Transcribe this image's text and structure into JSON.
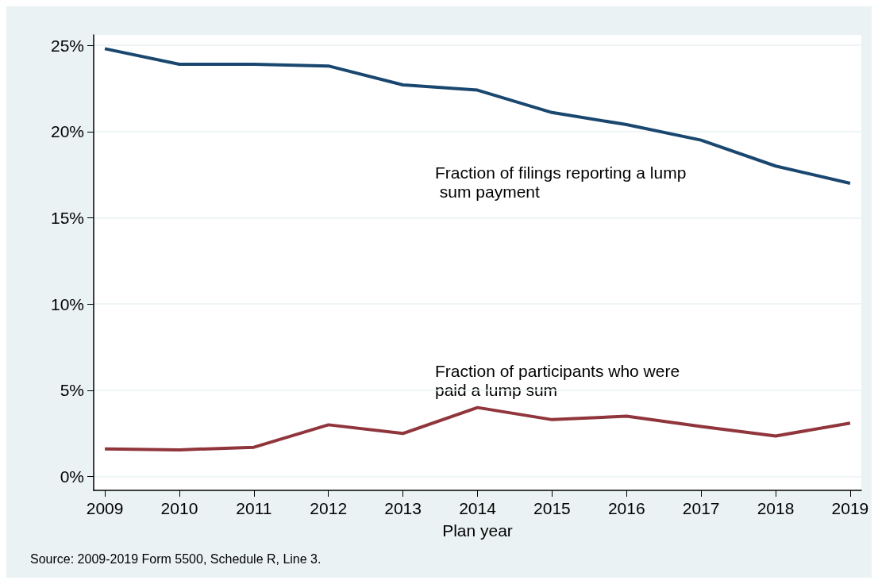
{
  "chart_data": {
    "type": "line",
    "xlabel": "Plan year",
    "x": [
      2009,
      2010,
      2011,
      2012,
      2013,
      2014,
      2015,
      2016,
      2017,
      2018,
      2019
    ],
    "series": [
      {
        "name": "Fraction of filings reporting a lump sum payment",
        "color": "#1a476f",
        "values": [
          24.8,
          23.9,
          23.9,
          23.8,
          22.7,
          22.4,
          21.1,
          20.4,
          19.5,
          18.0,
          17.0
        ]
      },
      {
        "name": "Fraction of participants who were paid a lump sum",
        "color": "#90353b",
        "values": [
          1.6,
          1.55,
          1.7,
          3.0,
          2.5,
          4.0,
          3.3,
          3.5,
          2.9,
          2.35,
          3.1
        ]
      }
    ],
    "xlim": [
      2008.85,
      2019.15
    ],
    "xticks": [
      2009,
      2010,
      2011,
      2012,
      2013,
      2014,
      2015,
      2016,
      2017,
      2018,
      2019
    ],
    "ylim": [
      -0.8,
      25.6
    ],
    "yticks": [
      {
        "value": 0,
        "label": "0%"
      },
      {
        "value": 5,
        "label": "5%"
      },
      {
        "value": 10,
        "label": "10%"
      },
      {
        "value": 15,
        "label": "15%"
      },
      {
        "value": 20,
        "label": "20%"
      },
      {
        "value": 25,
        "label": "25%"
      }
    ],
    "grid": "y",
    "legend": false,
    "marker": "none",
    "line_style": "solid",
    "annotations": [
      "Source: 2009-2019 Form 5500, Schedule R, Line 3."
    ]
  }
}
